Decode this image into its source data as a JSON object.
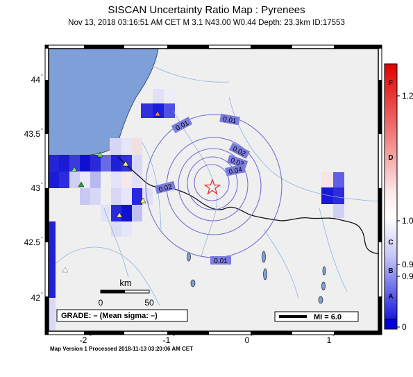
{
  "title": "SISCAN Uncertainty Ratio Map : Pyrenees",
  "subtitle": "Nov 13, 2018 03:16:51 AM CET   M 3.1    N43.00 W0.44    Depth: 23.3km    ID:17553",
  "map": {
    "lat_labels": [
      "44",
      "43.5",
      "43",
      "42.5",
      "42"
    ],
    "lon_labels": [
      "-2",
      "-1",
      "0",
      "1"
    ],
    "contour_labels": [
      "0.01",
      "0.01",
      "0.02",
      "0.03",
      "0.04",
      "0.02",
      "0.01"
    ],
    "scale": {
      "unit": "km",
      "ticks": [
        "0",
        "50"
      ]
    },
    "grade_text": "GRADE: – (Mean sigma: –)",
    "mi_text": "MI = 6.0",
    "colors": {
      "sea": "#7f9fd8",
      "land": "#efefef",
      "epicenter": "#e23030",
      "contour": "#6f6fd6"
    }
  },
  "colorbar": {
    "grade_letters": [
      "F",
      "D",
      "C",
      "B",
      "A"
    ],
    "value_labels": [
      "1.2",
      "1.0",
      "0.9",
      "0.9",
      "0"
    ],
    "colors": {
      "top": "#e00000",
      "mid": "#ffffff",
      "bottom": "#0000d8"
    }
  },
  "footer": "Map Version 1 Processed 2018-11-13 03:20:06 AM CET"
}
